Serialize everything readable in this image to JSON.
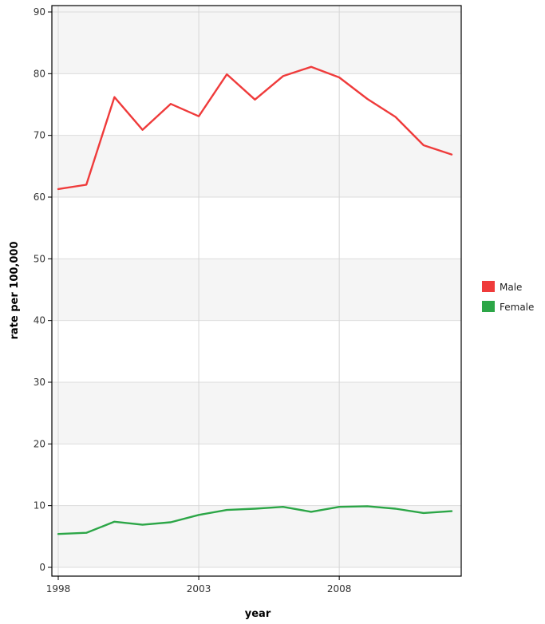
{
  "chart_data": {
    "type": "line",
    "title": "",
    "xlabel": "year",
    "ylabel": "rate per 100,000",
    "xlim": [
      1998,
      2012
    ],
    "ylim": [
      0,
      90
    ],
    "xticks": [
      1998,
      2003,
      2008
    ],
    "yticks": [
      0,
      10,
      20,
      30,
      40,
      50,
      60,
      70,
      80,
      90
    ],
    "grid": true,
    "legend_position": "right",
    "x": [
      1998,
      1999,
      2000,
      2001,
      2002,
      2003,
      2004,
      2005,
      2006,
      2007,
      2008,
      2009,
      2010,
      2011,
      2012
    ],
    "series": [
      {
        "name": "Male",
        "color": "#ef3b3b",
        "values": [
          61.3,
          62.0,
          76.2,
          70.9,
          75.1,
          73.1,
          79.9,
          75.8,
          79.6,
          81.1,
          79.4,
          75.9,
          73.0,
          68.4,
          66.9
        ]
      },
      {
        "name": "Female",
        "color": "#2ca647",
        "values": [
          5.4,
          5.6,
          7.4,
          6.9,
          7.3,
          8.5,
          9.3,
          9.5,
          9.8,
          9.0,
          9.8,
          9.9,
          9.5,
          8.8,
          9.1
        ]
      }
    ]
  }
}
